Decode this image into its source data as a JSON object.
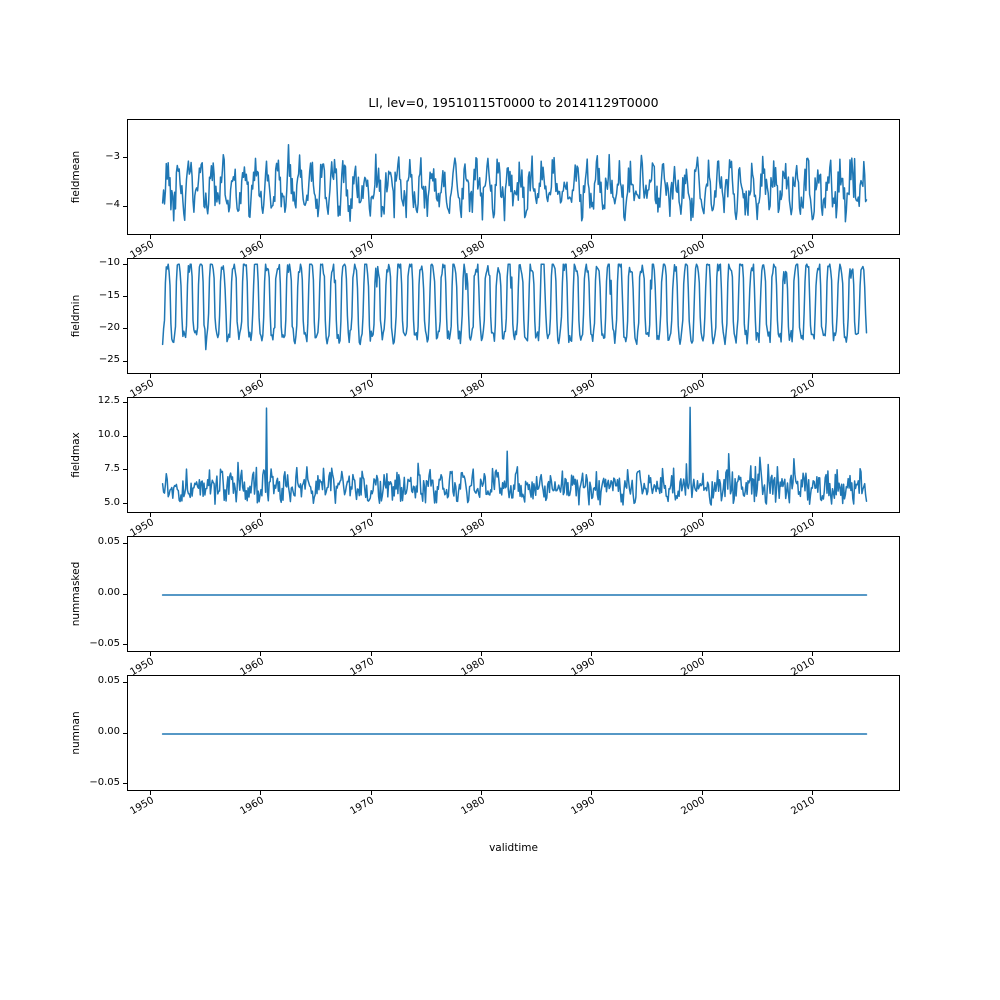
{
  "figure": {
    "title": "LI, lev=0, 19510115T0000 to 20141129T0000",
    "xlabel": "validtime",
    "xlim": [
      1947.9,
      2018.0
    ],
    "xticks": [
      {
        "v": 1950,
        "label": "1950"
      },
      {
        "v": 1960,
        "label": "1960"
      },
      {
        "v": 1970,
        "label": "1970"
      },
      {
        "v": 1980,
        "label": "1980"
      },
      {
        "v": 1990,
        "label": "1990"
      },
      {
        "v": 2000,
        "label": "2000"
      },
      {
        "v": 2010,
        "label": "2010"
      }
    ],
    "line_color": "#1f77b4"
  },
  "chart_data": [
    {
      "type": "line",
      "name": "fieldmean",
      "ylabel": "fieldmean",
      "color": "#1f77b4",
      "x_start": 1951.042,
      "x_end": 2014.875,
      "cadence": "monthly",
      "n_points": 767,
      "ylim": [
        -4.6,
        -2.2
      ],
      "yticks": [
        {
          "v": -3,
          "label": "−3"
        },
        {
          "v": -4,
          "label": "−4"
        }
      ],
      "summary": {
        "approx_mean": -3.6,
        "approx_min": -4.5,
        "approx_max": -2.6,
        "pattern": "noisy annual oscillation"
      },
      "series_spec": {
        "kind": "seasonal",
        "t0": 1951.042,
        "t1": 2014.875,
        "per_year": 12,
        "base": -3.62,
        "amp": 0.38,
        "phase": 0.25,
        "shape": "sine",
        "noise": 0.34,
        "spike_prob": 0.04,
        "spike_amp": 0.55,
        "clamp": [
          -4.5,
          -2.62
        ],
        "seed": 42
      }
    },
    {
      "type": "line",
      "name": "fieldmin",
      "ylabel": "fieldmin",
      "color": "#1f77b4",
      "x_start": 1951.042,
      "x_end": 2014.875,
      "cadence": "monthly",
      "n_points": 767,
      "ylim": [
        -27.0,
        -9.0
      ],
      "yticks": [
        {
          "v": -10,
          "label": "−10"
        },
        {
          "v": -15,
          "label": "−15"
        },
        {
          "v": -20,
          "label": "−20"
        },
        {
          "v": -25,
          "label": "−25"
        }
      ],
      "summary": {
        "approx_mean": -15.5,
        "approx_min": -25.5,
        "approx_max": -9.8,
        "pattern": "strong annual cycle between about -10 and -22, occasional dips to -25"
      },
      "series_spec": {
        "kind": "seasonal",
        "t0": 1951.042,
        "t1": 2014.875,
        "per_year": 12,
        "base": -15.6,
        "amp": 5.6,
        "phase": 0.25,
        "shape": "tanh",
        "sharp": 2.2,
        "noise": 1.1,
        "spike_prob": 0.03,
        "spike_amp": -3.5,
        "clamp": [
          -25.6,
          -9.8
        ],
        "seed": 7
      }
    },
    {
      "type": "line",
      "name": "fieldmax",
      "ylabel": "fieldmax",
      "color": "#1f77b4",
      "x_start": 1951.042,
      "x_end": 2014.875,
      "cadence": "monthly",
      "n_points": 767,
      "ylim": [
        4.3,
        12.9
      ],
      "yticks": [
        {
          "v": 12.5,
          "label": "12.5"
        },
        {
          "v": 10.0,
          "label": "10.0"
        },
        {
          "v": 7.5,
          "label": "7.5"
        },
        {
          "v": 5.0,
          "label": "5.0"
        }
      ],
      "summary": {
        "approx_mean": 6.4,
        "approx_min": 4.7,
        "approx_max": 12.2,
        "pattern": "noisy band 5-8 with spikes; two large spikes ~12.2 near 1960 and 1999"
      },
      "series_spec": {
        "kind": "seasonal",
        "t0": 1951.042,
        "t1": 2014.875,
        "per_year": 12,
        "base": 6.3,
        "amp": 0.45,
        "phase": 0.0,
        "shape": "sine",
        "noise": 0.9,
        "spike_prob": 0.06,
        "spike_amp": 2.0,
        "clamp": [
          4.65,
          12.3
        ],
        "seed": 13,
        "spikes": [
          {
            "t": 1960.46,
            "v": 12.15
          },
          {
            "t": 1998.88,
            "v": 12.2
          }
        ]
      }
    },
    {
      "type": "line",
      "name": "nummasked",
      "ylabel": "nummasked",
      "color": "#1f77b4",
      "x_start": 1951.042,
      "x_end": 2014.875,
      "cadence": "monthly",
      "n_points": 767,
      "ylim": [
        -0.057,
        0.057
      ],
      "yticks": [
        {
          "v": 0.05,
          "label": "0.05"
        },
        {
          "v": 0.0,
          "label": "0.00"
        },
        {
          "v": -0.05,
          "label": "−0.05"
        }
      ],
      "summary": {
        "approx_mean": 0.0,
        "approx_min": 0.0,
        "approx_max": 0.0,
        "pattern": "constant zero"
      },
      "series_spec": {
        "kind": "constant",
        "t0": 1951.042,
        "t1": 2014.875,
        "per_year": 12,
        "base": 0.0
      }
    },
    {
      "type": "line",
      "name": "numnan",
      "ylabel": "numnan",
      "color": "#1f77b4",
      "x_start": 1951.042,
      "x_end": 2014.875,
      "cadence": "monthly",
      "n_points": 767,
      "ylim": [
        -0.057,
        0.057
      ],
      "yticks": [
        {
          "v": 0.05,
          "label": "0.05"
        },
        {
          "v": 0.0,
          "label": "0.00"
        },
        {
          "v": -0.05,
          "label": "−0.05"
        }
      ],
      "summary": {
        "approx_mean": 0.0,
        "approx_min": 0.0,
        "approx_max": 0.0,
        "pattern": "constant zero"
      },
      "series_spec": {
        "kind": "constant",
        "t0": 1951.042,
        "t1": 2014.875,
        "per_year": 12,
        "base": 0.0
      }
    }
  ]
}
